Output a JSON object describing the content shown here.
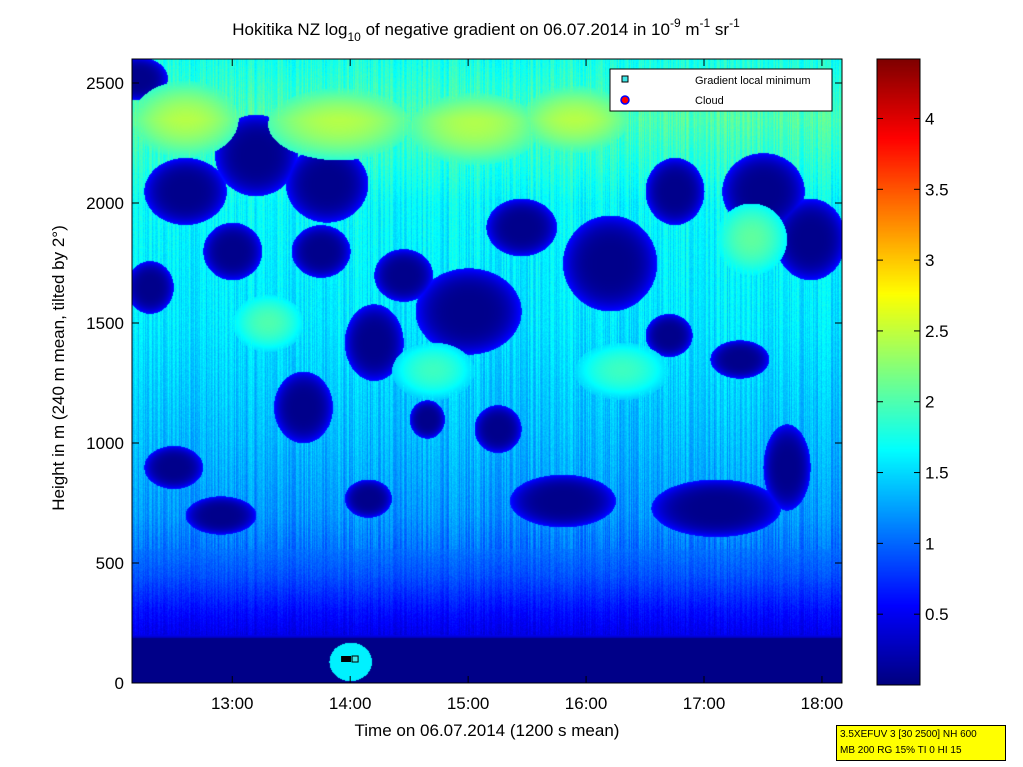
{
  "chart_data": {
    "type": "heatmap",
    "title": {
      "p1": "Hokitika NZ log",
      "sub10": "10",
      "p2": " of negative gradient on 06.07.2014 in 10",
      "sup1": "-9",
      "p3": " m",
      "sup2": "-1",
      "p4": " sr",
      "sup3": "-1"
    },
    "xlabel": "Time on 06.07.2014 (1200 s mean)",
    "ylabel": "Height in m (240 m mean, tilted by 2°)",
    "xlim_hours": [
      12.15,
      18.17
    ],
    "ylim": [
      0,
      2600
    ],
    "x_ticks": [
      {
        "v": 13,
        "label": "13:00"
      },
      {
        "v": 14,
        "label": "14:00"
      },
      {
        "v": 15,
        "label": "15:00"
      },
      {
        "v": 16,
        "label": "16:00"
      },
      {
        "v": 17,
        "label": "17:00"
      },
      {
        "v": 18,
        "label": "18:00"
      }
    ],
    "y_ticks": [
      {
        "v": 0,
        "label": "0"
      },
      {
        "v": 500,
        "label": "500"
      },
      {
        "v": 1000,
        "label": "1000"
      },
      {
        "v": 1500,
        "label": "1500"
      },
      {
        "v": 2000,
        "label": "2000"
      },
      {
        "v": 2500,
        "label": "2500"
      }
    ],
    "colorbar": {
      "min": 0,
      "max": 4.42,
      "ticks": [
        {
          "v": 0.5,
          "label": "0.5"
        },
        {
          "v": 1,
          "label": "1"
        },
        {
          "v": 1.5,
          "label": "1.5"
        },
        {
          "v": 2,
          "label": "2"
        },
        {
          "v": 2.5,
          "label": "2.5"
        },
        {
          "v": 3,
          "label": "3"
        },
        {
          "v": 3.5,
          "label": "3.5"
        },
        {
          "v": 4,
          "label": "4"
        }
      ],
      "colormap": "jet"
    },
    "approx_field": {
      "note_value_unit": "log10 value",
      "profile": [
        {
          "h": 0,
          "value": 0.0
        },
        {
          "h": 180,
          "value": 0.05
        },
        {
          "h": 200,
          "value": 0.45
        },
        {
          "h": 300,
          "value": 0.6
        },
        {
          "h": 450,
          "value": 0.9
        },
        {
          "h": 560,
          "value": 1.05
        },
        {
          "h": 700,
          "value": 1.2
        },
        {
          "h": 1000,
          "value": 1.35
        },
        {
          "h": 1500,
          "value": 1.55
        },
        {
          "h": 2000,
          "value": 1.65
        },
        {
          "h": 2350,
          "value": 2.0
        },
        {
          "h": 2600,
          "value": 1.75
        }
      ],
      "low_regions": [
        {
          "t": 12.2,
          "h": 2520,
          "dt": 0.25,
          "dh": 90
        },
        {
          "t": 12.6,
          "h": 2050,
          "dt": 0.35,
          "dh": 140
        },
        {
          "t": 12.3,
          "h": 1650,
          "dt": 0.2,
          "dh": 110
        },
        {
          "t": 13.0,
          "h": 1800,
          "dt": 0.25,
          "dh": 120
        },
        {
          "t": 13.2,
          "h": 2200,
          "dt": 0.35,
          "dh": 170
        },
        {
          "t": 13.8,
          "h": 2080,
          "dt": 0.35,
          "dh": 160
        },
        {
          "t": 14.2,
          "h": 1420,
          "dt": 0.25,
          "dh": 160
        },
        {
          "t": 13.75,
          "h": 1800,
          "dt": 0.25,
          "dh": 110
        },
        {
          "t": 14.45,
          "h": 1700,
          "dt": 0.25,
          "dh": 110
        },
        {
          "t": 15.0,
          "h": 1550,
          "dt": 0.45,
          "dh": 180
        },
        {
          "t": 15.45,
          "h": 1900,
          "dt": 0.3,
          "dh": 120
        },
        {
          "t": 16.2,
          "h": 1750,
          "dt": 0.4,
          "dh": 200
        },
        {
          "t": 16.75,
          "h": 2050,
          "dt": 0.25,
          "dh": 140
        },
        {
          "t": 17.5,
          "h": 2050,
          "dt": 0.35,
          "dh": 160
        },
        {
          "t": 17.9,
          "h": 1850,
          "dt": 0.3,
          "dh": 170
        },
        {
          "t": 15.25,
          "h": 1060,
          "dt": 0.2,
          "dh": 100
        },
        {
          "t": 15.8,
          "h": 760,
          "dt": 0.45,
          "dh": 110
        },
        {
          "t": 17.1,
          "h": 730,
          "dt": 0.55,
          "dh": 120
        },
        {
          "t": 17.7,
          "h": 900,
          "dt": 0.2,
          "dh": 180
        },
        {
          "t": 14.15,
          "h": 770,
          "dt": 0.2,
          "dh": 80
        },
        {
          "t": 12.9,
          "h": 700,
          "dt": 0.3,
          "dh": 80
        },
        {
          "t": 12.5,
          "h": 900,
          "dt": 0.25,
          "dh": 90
        },
        {
          "t": 13.6,
          "h": 1150,
          "dt": 0.25,
          "dh": 150
        },
        {
          "t": 16.7,
          "h": 1450,
          "dt": 0.2,
          "dh": 90
        },
        {
          "t": 17.3,
          "h": 1350,
          "dt": 0.25,
          "dh": 80
        },
        {
          "t": 14.65,
          "h": 1100,
          "dt": 0.15,
          "dh": 80
        }
      ],
      "high_regions": [
        {
          "t": 12.6,
          "h": 2350,
          "dt": 0.45,
          "dh": 160
        },
        {
          "t": 13.9,
          "h": 2330,
          "dt": 0.6,
          "dh": 150
        },
        {
          "t": 15.05,
          "h": 2310,
          "dt": 0.55,
          "dh": 150
        },
        {
          "t": 15.9,
          "h": 2350,
          "dt": 0.45,
          "dh": 140
        },
        {
          "t": 17.4,
          "h": 1850,
          "dt": 0.3,
          "dh": 150
        },
        {
          "t": 14.7,
          "h": 1300,
          "dt": 0.35,
          "dh": 120
        },
        {
          "t": 16.3,
          "h": 1300,
          "dt": 0.4,
          "dh": 120
        },
        {
          "t": 13.3,
          "h": 1500,
          "dt": 0.3,
          "dh": 120
        }
      ]
    },
    "ground_blob": {
      "t": 14.0,
      "h": 90,
      "value": 1.6
    },
    "gradient_local_minima": [
      {
        "t": 14.05,
        "h": 100
      }
    ],
    "legend": {
      "position": "top-right",
      "entries": [
        {
          "label": "Gradient local minimum",
          "marker": "square",
          "color": "#3ee6e6"
        },
        {
          "label": "Cloud",
          "marker": "circle",
          "color": "#ff0000",
          "edge": "#0000ff"
        }
      ]
    }
  },
  "info_box": {
    "line1": "3.5XEFUV 3 [30 2500] NH 600",
    "line2": "MB 200 RG 15% TI 0 HI 15"
  }
}
